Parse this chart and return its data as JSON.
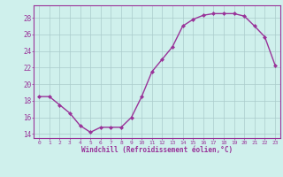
{
  "x": [
    0,
    1,
    2,
    3,
    4,
    5,
    6,
    7,
    8,
    9,
    10,
    11,
    12,
    13,
    14,
    15,
    16,
    17,
    18,
    19,
    20,
    21,
    22,
    23
  ],
  "y": [
    18.5,
    18.5,
    17.5,
    16.5,
    15.0,
    14.2,
    14.8,
    14.8,
    14.8,
    16.0,
    18.5,
    21.5,
    23.0,
    24.5,
    27.0,
    27.8,
    28.3,
    28.5,
    28.5,
    28.5,
    28.2,
    27.0,
    25.7,
    22.3
  ],
  "xlabel": "Windchill (Refroidissement éolien,°C)",
  "xlim": [
    -0.5,
    23.5
  ],
  "ylim": [
    13.5,
    29.5
  ],
  "yticks": [
    14,
    16,
    18,
    20,
    22,
    24,
    26,
    28
  ],
  "xticks": [
    0,
    1,
    2,
    3,
    4,
    5,
    6,
    7,
    8,
    9,
    10,
    11,
    12,
    13,
    14,
    15,
    16,
    17,
    18,
    19,
    20,
    21,
    22,
    23
  ],
  "line_color": "#993399",
  "marker": "D",
  "marker_size": 2.0,
  "bg_color": "#cff0ec",
  "grid_color": "#aacccc",
  "label_color": "#993399",
  "tick_color": "#993399",
  "spine_color": "#993399"
}
